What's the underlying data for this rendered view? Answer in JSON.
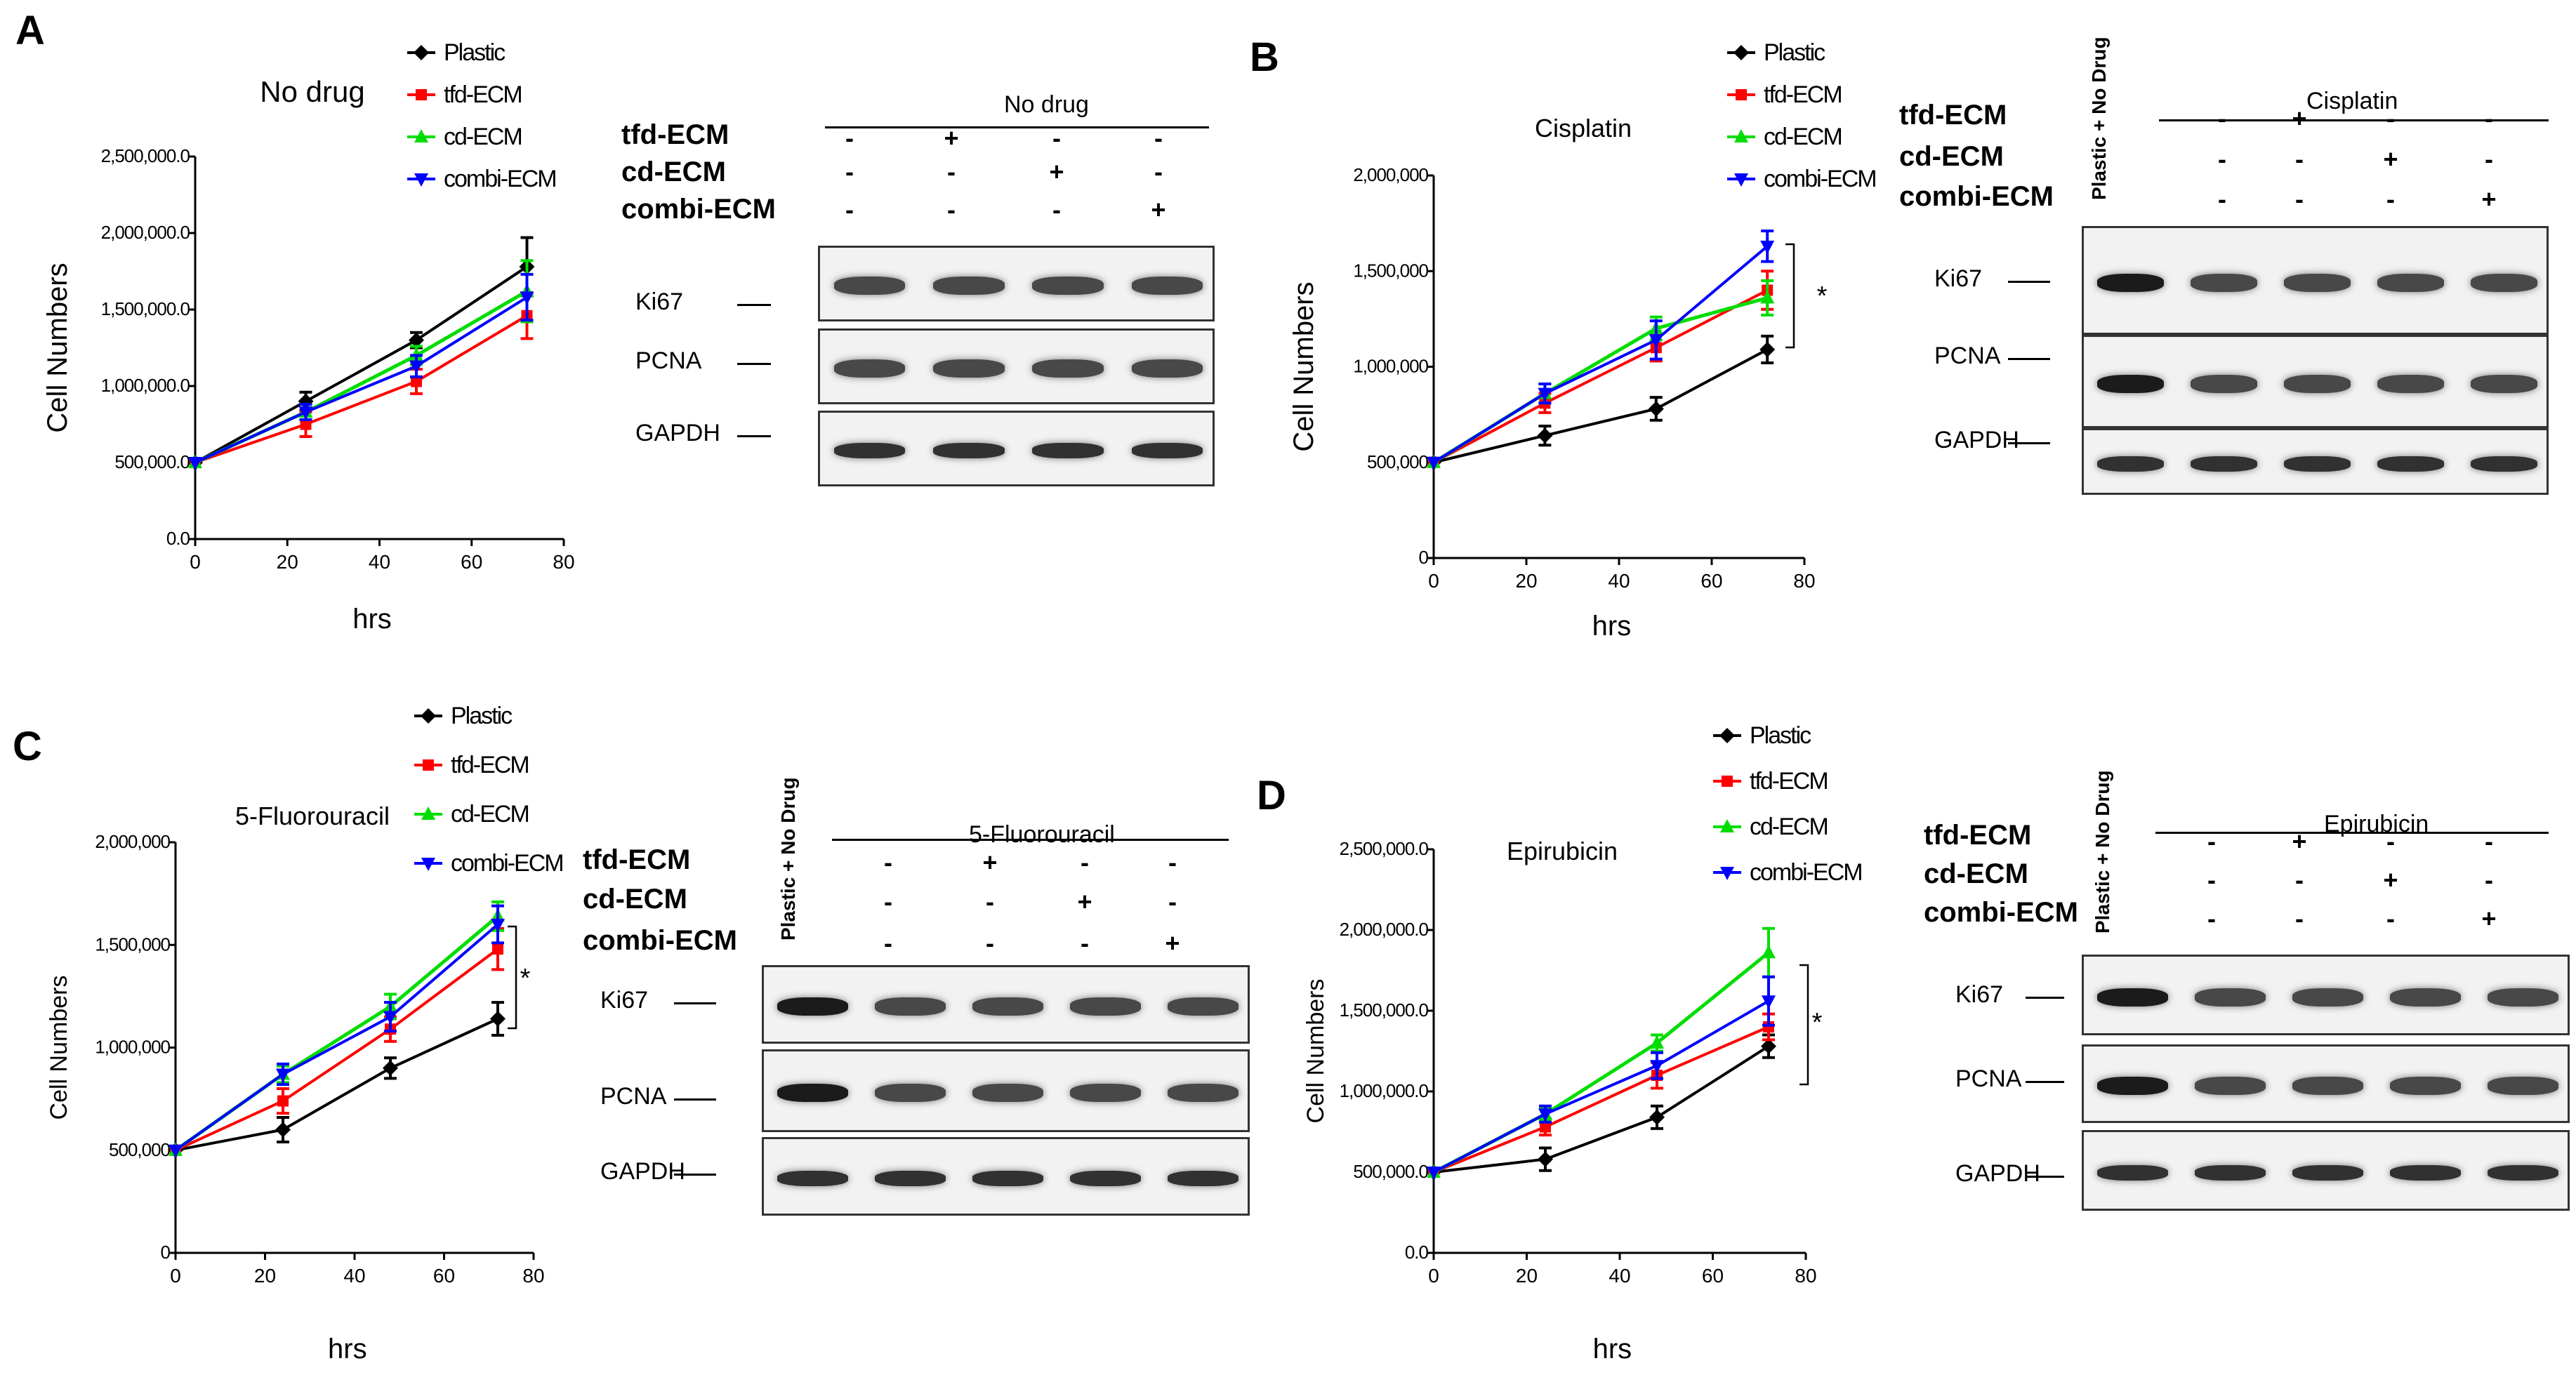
{
  "panels": [
    {
      "letter": "A",
      "chart": {
        "title": "No drug",
        "ylabel": "Cell Numbers",
        "xlabel": "hrs",
        "yticks": [
          "0.0",
          "500,000.0",
          "1,000,000.0",
          "1,500,000.0",
          "2,000,000.0",
          "2,500,000.0"
        ],
        "xticks": [
          "0",
          "20",
          "40",
          "60",
          "80"
        ],
        "ylim": [
          0,
          2500000
        ],
        "xlim": [
          0,
          80
        ],
        "star": ""
      },
      "blot": {
        "condition": "No drug",
        "has_plastic_label": false,
        "plastic_label": "",
        "rows": [
          {
            "label": "tfd-ECM",
            "signs": [
              "-",
              "+",
              "-",
              "-"
            ]
          },
          {
            "label": "cd-ECM",
            "signs": [
              "-",
              "-",
              "+",
              "-"
            ]
          },
          {
            "label": "combi-ECM",
            "signs": [
              "-",
              "-",
              "-",
              "+"
            ]
          }
        ],
        "proteins": [
          "Ki67",
          "PCNA",
          "GAPDH"
        ]
      }
    },
    {
      "letter": "B",
      "chart": {
        "title": "Cisplatin",
        "ylabel": "Cell Numbers",
        "xlabel": "hrs",
        "yticks": [
          "0",
          "500,000",
          "1,000,000",
          "1,500,000",
          "2,000,000"
        ],
        "xticks": [
          "0",
          "20",
          "40",
          "60",
          "80"
        ],
        "ylim": [
          0,
          2000000
        ],
        "xlim": [
          0,
          80
        ],
        "star": "*"
      },
      "blot": {
        "condition": "Cisplatin",
        "has_plastic_label": true,
        "plastic_label": "Plastic + No Drug",
        "rows": [
          {
            "label": "tfd-ECM",
            "signs": [
              "-",
              "+",
              "-",
              "-"
            ]
          },
          {
            "label": "cd-ECM",
            "signs": [
              "-",
              "-",
              "+",
              "-"
            ]
          },
          {
            "label": "combi-ECM",
            "signs": [
              "-",
              "-",
              "-",
              "+"
            ]
          }
        ],
        "proteins": [
          "Ki67",
          "PCNA",
          "GAPDH"
        ]
      }
    },
    {
      "letter": "C",
      "chart": {
        "title": "5-Fluorouracil",
        "ylabel": "Cell Numbers",
        "xlabel": "hrs",
        "yticks": [
          "0",
          "500,000",
          "1,000,000",
          "1,500,000",
          "2,000,000"
        ],
        "xticks": [
          "0",
          "20",
          "40",
          "60",
          "80"
        ],
        "ylim": [
          0,
          2000000
        ],
        "xlim": [
          0,
          80
        ],
        "star": "*"
      },
      "blot": {
        "condition": "5-Fluorouracil",
        "has_plastic_label": true,
        "plastic_label": "Plastic + No Drug",
        "rows": [
          {
            "label": "tfd-ECM",
            "signs": [
              "-",
              "+",
              "-",
              "-"
            ]
          },
          {
            "label": "cd-ECM",
            "signs": [
              "-",
              "-",
              "+",
              "-"
            ]
          },
          {
            "label": "combi-ECM",
            "signs": [
              "-",
              "-",
              "-",
              "+"
            ]
          }
        ],
        "proteins": [
          "Ki67",
          "PCNA",
          "GAPDH"
        ]
      }
    },
    {
      "letter": "D",
      "chart": {
        "title": "Epirubicin",
        "ylabel": "Cell Numbers",
        "xlabel": "hrs",
        "yticks": [
          "0.0",
          "500,000.0",
          "1,000,000.0",
          "1,500,000.0",
          "2,000,000.0",
          "2,500,000.0"
        ],
        "xticks": [
          "0",
          "20",
          "40",
          "60",
          "80"
        ],
        "ylim": [
          0,
          2500000
        ],
        "xlim": [
          0,
          80
        ],
        "star": "*"
      },
      "blot": {
        "condition": "Epirubicin",
        "has_plastic_label": true,
        "plastic_label": "Plastic + No Drug",
        "rows": [
          {
            "label": "tfd-ECM",
            "signs": [
              "-",
              "+",
              "-",
              "-"
            ]
          },
          {
            "label": "cd-ECM",
            "signs": [
              "-",
              "-",
              "+",
              "-"
            ]
          },
          {
            "label": "combi-ECM",
            "signs": [
              "-",
              "-",
              "-",
              "+"
            ]
          }
        ],
        "proteins": [
          "Ki67",
          "PCNA",
          "GAPDH"
        ]
      }
    }
  ],
  "legend": [
    "Plastic",
    "tfd-ECM",
    "cd-ECM",
    "combi-ECM"
  ],
  "colors": {
    "Plastic": "#000000",
    "tfd-ECM": "#ff0000",
    "cd-ECM": "#00dd00",
    "combi-ECM": "#0000ff"
  },
  "chart_data": [
    {
      "type": "line",
      "title": "No drug",
      "xlabel": "hrs",
      "ylabel": "Cell Numbers",
      "x": [
        0,
        24,
        48,
        72
      ],
      "xlim": [
        0,
        80
      ],
      "ylim": [
        0,
        2500000
      ],
      "series": [
        {
          "name": "Plastic",
          "values": [
            500000,
            900000,
            1300000,
            1780000
          ],
          "err": [
            0,
            60000,
            50000,
            190000
          ]
        },
        {
          "name": "tfd-ECM",
          "values": [
            500000,
            750000,
            1030000,
            1460000
          ],
          "err": [
            0,
            80000,
            80000,
            150000
          ]
        },
        {
          "name": "cd-ECM",
          "values": [
            500000,
            830000,
            1200000,
            1620000
          ],
          "err": [
            0,
            50000,
            60000,
            200000
          ]
        },
        {
          "name": "combi-ECM",
          "values": [
            500000,
            830000,
            1130000,
            1580000
          ],
          "err": [
            0,
            50000,
            70000,
            150000
          ]
        }
      ]
    },
    {
      "type": "line",
      "title": "Cisplatin",
      "xlabel": "hrs",
      "ylabel": "Cell Numbers",
      "x": [
        0,
        24,
        48,
        72
      ],
      "xlim": [
        0,
        80
      ],
      "ylim": [
        0,
        2000000
      ],
      "series": [
        {
          "name": "Plastic",
          "values": [
            500000,
            640000,
            780000,
            1090000
          ],
          "err": [
            0,
            50000,
            60000,
            70000
          ]
        },
        {
          "name": "tfd-ECM",
          "values": [
            500000,
            810000,
            1100000,
            1400000
          ],
          "err": [
            0,
            50000,
            70000,
            100000
          ]
        },
        {
          "name": "cd-ECM",
          "values": [
            500000,
            860000,
            1200000,
            1360000
          ],
          "err": [
            0,
            50000,
            60000,
            90000
          ]
        },
        {
          "name": "combi-ECM",
          "values": [
            500000,
            860000,
            1140000,
            1630000
          ],
          "err": [
            0,
            50000,
            100000,
            80000
          ]
        }
      ]
    },
    {
      "type": "line",
      "title": "5-Fluorouracil",
      "xlabel": "hrs",
      "ylabel": "Cell Numbers",
      "x": [
        0,
        24,
        48,
        72
      ],
      "xlim": [
        0,
        80
      ],
      "ylim": [
        0,
        2000000
      ],
      "series": [
        {
          "name": "Plastic",
          "values": [
            500000,
            600000,
            900000,
            1140000
          ],
          "err": [
            0,
            60000,
            50000,
            80000
          ]
        },
        {
          "name": "tfd-ECM",
          "values": [
            500000,
            740000,
            1090000,
            1480000
          ],
          "err": [
            0,
            60000,
            60000,
            100000
          ]
        },
        {
          "name": "cd-ECM",
          "values": [
            500000,
            870000,
            1200000,
            1640000
          ],
          "err": [
            0,
            40000,
            60000,
            70000
          ]
        },
        {
          "name": "combi-ECM",
          "values": [
            500000,
            870000,
            1150000,
            1600000
          ],
          "err": [
            0,
            50000,
            70000,
            90000
          ]
        }
      ]
    },
    {
      "type": "line",
      "title": "Epirubicin",
      "xlabel": "hrs",
      "ylabel": "Cell Numbers",
      "x": [
        0,
        24,
        48,
        72
      ],
      "xlim": [
        0,
        80
      ],
      "ylim": [
        0,
        2500000
      ],
      "series": [
        {
          "name": "Plastic",
          "values": [
            500000,
            580000,
            840000,
            1280000
          ],
          "err": [
            0,
            70000,
            70000,
            70000
          ]
        },
        {
          "name": "tfd-ECM",
          "values": [
            500000,
            780000,
            1100000,
            1400000
          ],
          "err": [
            0,
            50000,
            80000,
            80000
          ]
        },
        {
          "name": "cd-ECM",
          "values": [
            500000,
            860000,
            1300000,
            1860000
          ],
          "err": [
            0,
            40000,
            50000,
            150000
          ]
        },
        {
          "name": "combi-ECM",
          "values": [
            500000,
            860000,
            1160000,
            1560000
          ],
          "err": [
            0,
            50000,
            80000,
            150000
          ]
        }
      ]
    }
  ]
}
